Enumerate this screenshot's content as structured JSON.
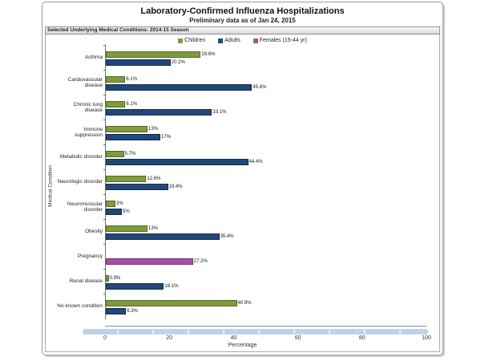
{
  "panel_header": "Selected Underlying Medical Conditions: 2014-15 Season",
  "legend": [
    {
      "label": "Children",
      "color": "#7E9B3F"
    },
    {
      "label": "Adults",
      "color": "#1F4878"
    },
    {
      "label": "Females (15-44 yr)",
      "color": "#A352A3"
    }
  ],
  "colors": {
    "children_fill": "#7E9B3F",
    "children_border": "#55691F",
    "adults_fill": "#1F4878",
    "adults_border": "#132C4E",
    "females_fill": "#A352A3",
    "females_border": "#6F3270",
    "scrollbar": "#BCD2EA"
  },
  "chart_data": {
    "type": "bar",
    "orientation": "horizontal",
    "title": "Laboratory-Confirmed Influenza Hospitalizations",
    "subtitle": "Preliminary data as of Jan 24, 2015",
    "xlabel": "Percentage",
    "ylabel": "Medical Condition",
    "xlim": [
      0,
      100
    ],
    "xticks": [
      0,
      20,
      40,
      60,
      80,
      100
    ],
    "grid": false,
    "legend_position": "top",
    "categories": [
      "Asthma",
      "Cardiovascular disease",
      "Chronic lung disease",
      "Immune suppression",
      "Metabolic disorder",
      "Neurologic disorder",
      "Neuromuscular disorder",
      "Obesity",
      "Pregnancy",
      "Renal disease",
      "No known condition"
    ],
    "series": [
      {
        "name": "Children",
        "color": "#7E9B3F",
        "values": [
          29.6,
          6.1,
          6.1,
          13,
          5.7,
          12.6,
          3,
          13,
          null,
          0.9,
          40.9
        ]
      },
      {
        "name": "Adults",
        "color": "#1F4878",
        "values": [
          20.2,
          45.6,
          33.1,
          17,
          44.4,
          19.4,
          5,
          35.4,
          null,
          18.1,
          6.3
        ]
      },
      {
        "name": "Females (15-44 yr)",
        "color": "#A352A3",
        "values": [
          null,
          null,
          null,
          null,
          null,
          null,
          null,
          null,
          27.2,
          null,
          null
        ]
      }
    ]
  }
}
